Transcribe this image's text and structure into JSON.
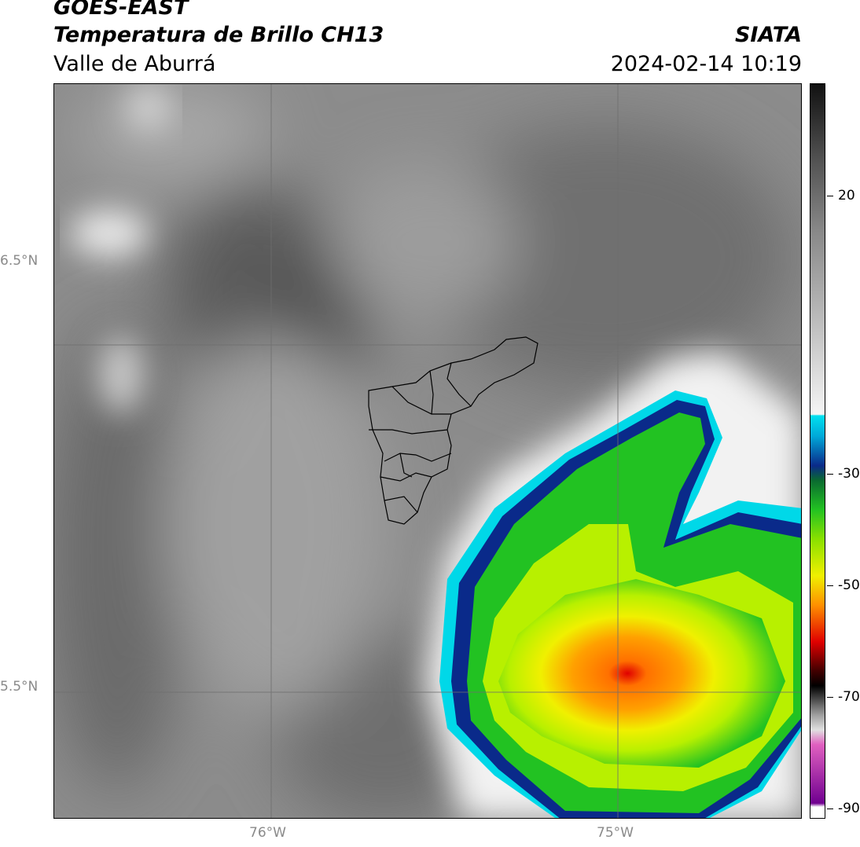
{
  "header": {
    "satellite": "GOES-EAST",
    "product": "Temperatura de Brillo CH13",
    "region": "Valle de Aburrá",
    "agency": "SIATA",
    "datetime": "2024-02-14 10:19"
  },
  "map": {
    "lat_labels": [
      "6.5°N",
      "5.5°N"
    ],
    "lon_labels": [
      "76°W",
      "75°W"
    ],
    "colors": {
      "background_gray": "#8a8a8a",
      "gridline": "#6e6e6e",
      "boundary": "#000000"
    }
  },
  "colorbar": {
    "labels": [
      "20",
      "-30",
      "-50",
      "-70",
      "-90"
    ],
    "units_values": [
      20,
      -30,
      -50,
      -70,
      -90
    ],
    "colors": {
      "dark": "#111111",
      "white": "#f5f5f5",
      "cyan": "#00d8e8",
      "navy": "#0a2a8a",
      "green": "#22c222",
      "lime": "#b8f000",
      "yellow": "#f0f000",
      "orange": "#ff9000",
      "red": "#e00000",
      "black": "#000000",
      "magenta": "#e060c0",
      "purple": "#700090"
    }
  }
}
